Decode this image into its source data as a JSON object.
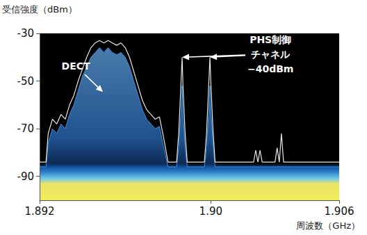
{
  "chart_data": {
    "type": "line",
    "ylabel": "受信強度（dBm）",
    "xlabel": "周波数（GHz）",
    "x": [
      1.892,
      1.8923,
      1.8924,
      1.8926,
      1.8928,
      1.893,
      1.8932,
      1.8934,
      1.8936,
      1.8938,
      1.894,
      1.8942,
      1.8944,
      1.8946,
      1.8948,
      1.895,
      1.8952,
      1.8954,
      1.8956,
      1.8958,
      1.896,
      1.8962,
      1.8964,
      1.8966,
      1.8968,
      1.897,
      1.8972,
      1.8974,
      1.8976,
      1.8978,
      1.898,
      1.8984,
      1.8985,
      1.8986,
      1.89866,
      1.8987,
      1.8988,
      1.8989,
      1.8997,
      1.8998,
      1.8999,
      1.89996,
      1.9,
      1.9001,
      1.9002,
      1.902,
      1.9021,
      1.9022,
      1.9023,
      1.9024,
      1.903,
      1.9031,
      1.9032,
      1.9033,
      1.9034,
      1.906
    ],
    "series": [
      {
        "type": "area",
        "color": "#3b8fe0",
        "values": [
          -86,
          -86,
          -76,
          -70,
          -72,
          -68,
          -70,
          -64,
          -60,
          -54,
          -48,
          -44,
          -40,
          -38,
          -36,
          -38,
          -36,
          -38,
          -39,
          -38,
          -40,
          -44,
          -50,
          -56,
          -62,
          -66,
          -68,
          -70,
          -69,
          -78,
          -86,
          -86,
          -78,
          -64,
          -52,
          -64,
          -78,
          -86,
          -86,
          -78,
          -64,
          -52,
          -62,
          -76,
          -86,
          -86,
          -86,
          -86,
          -86,
          -86,
          -86,
          -86,
          -86,
          -86,
          -86,
          -86
        ]
      },
      {
        "type": "line",
        "color": "#e8e8e8",
        "values": [
          -84,
          -84,
          -72,
          -66,
          -68,
          -64,
          -66,
          -60,
          -56,
          -50,
          -45,
          -40,
          -36,
          -34,
          -33,
          -34,
          -33,
          -34,
          -35,
          -34,
          -36,
          -40,
          -46,
          -52,
          -58,
          -62,
          -64,
          -66,
          -65,
          -74,
          -84,
          -84,
          -72,
          -52,
          -40,
          -52,
          -72,
          -84,
          -84,
          -72,
          -52,
          -40,
          -50,
          -70,
          -84,
          -84,
          -79,
          -84,
          -79,
          -84,
          -84,
          -78,
          -84,
          -72,
          -84,
          -84
        ]
      }
    ],
    "xlim": [
      1.892,
      1.906
    ],
    "xticks": [
      1.892,
      {
        "value": 1.9,
        "label": "1.90"
      },
      1.906
    ],
    "ylim": [
      -100,
      -30
    ],
    "yticks": [
      -30,
      -50,
      -70,
      -90
    ],
    "grid": false,
    "annotations": [
      {
        "text": "DECT",
        "x": 1.89369,
        "y": -43.6,
        "arrow_to": [
          [
            1.89496,
            -54.6
          ]
        ]
      },
      {
        "text": "PHS制御\nチャネル\n−40dBm",
        "x": 1.90279,
        "y": -38.7,
        "arrow_to": [
          [
            1.89866,
            -40
          ],
          [
            1.89996,
            -40
          ]
        ]
      }
    ]
  }
}
